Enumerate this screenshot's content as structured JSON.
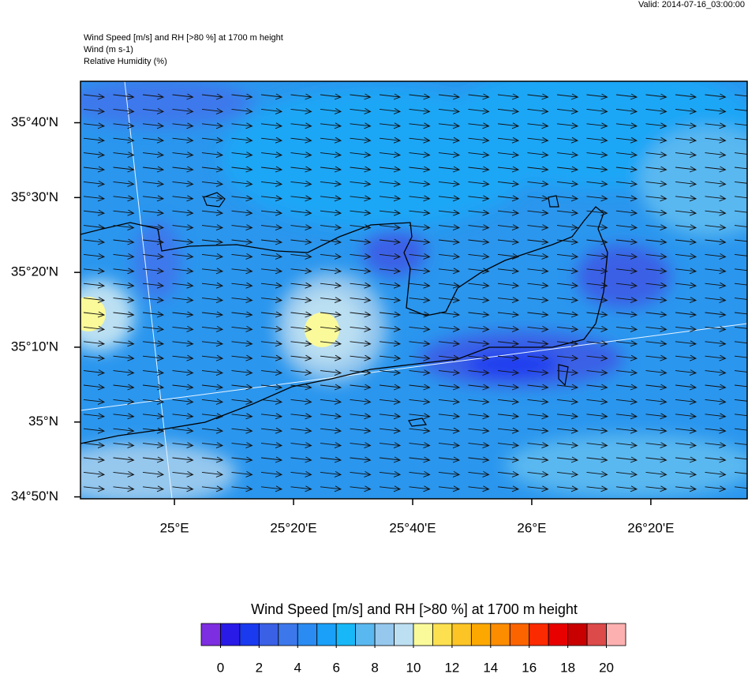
{
  "header": {
    "valid": "Valid: 2014-07-16_03:00:00",
    "title_lines": [
      "Wind Speed [m/s] and RH [>80 %] at 1700 m height",
      "Wind   (m s-1)",
      "Relative Humidity   (%)"
    ]
  },
  "map": {
    "lat_range": [
      34.829,
      35.759
    ],
    "lon_range": [
      24.737,
      26.603
    ],
    "lat_ticks": [
      {
        "value": 35.6667,
        "label": "35°40'N"
      },
      {
        "value": 35.5,
        "label": "35°30'N"
      },
      {
        "value": 35.3333,
        "label": "35°20'N"
      },
      {
        "value": 35.1667,
        "label": "35°10'N"
      },
      {
        "value": 35,
        "label": "35°N"
      },
      {
        "value": 34.8333,
        "label": "34°50'N"
      }
    ],
    "lon_ticks": [
      {
        "value": 25,
        "label": "25°E"
      },
      {
        "value": 25.3333,
        "label": "25°20'E"
      },
      {
        "value": 25.6667,
        "label": "25°40'E"
      },
      {
        "value": 26,
        "label": "26°E"
      },
      {
        "value": 26.3333,
        "label": "26°20'E"
      }
    ]
  },
  "colorbar": {
    "title": "Wind Speed [m/s] and RH [>80 %] at 1700 m height",
    "range": [
      -1,
      21
    ],
    "colors": [
      "#7d2ee0",
      "#2a1ae8",
      "#1a3af0",
      "#3a60e6",
      "#3c78ec",
      "#2a8cf2",
      "#1aa0f8",
      "#18b8f8",
      "#5ab8f0",
      "#96c8ee",
      "#bce0f2",
      "#fafa9a",
      "#fce050",
      "#fcc424",
      "#fca800",
      "#fc8c00",
      "#fc6400",
      "#fc2a00",
      "#e80000",
      "#c80000",
      "#dc4a4a",
      "#fcb0b0"
    ],
    "ticks": [
      0,
      2,
      4,
      6,
      8,
      10,
      12,
      14,
      16,
      18,
      20
    ]
  }
}
